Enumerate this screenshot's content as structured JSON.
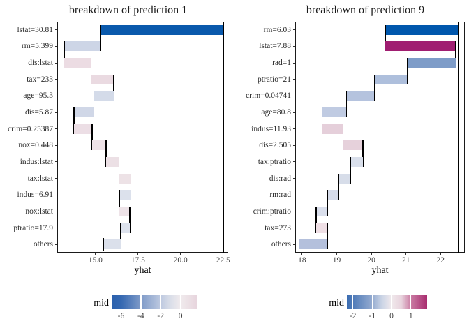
{
  "chart_data": [
    {
      "type": "bar",
      "subtype": "waterfall-breakdown",
      "title": "breakdown of prediction 1",
      "xlabel": "yhat",
      "xlim": [
        12.75,
        22.8
      ],
      "x_ticks": [
        15.0,
        17.5,
        20.0,
        22.5
      ],
      "x_tick_labels": [
        "15.0",
        "17.5",
        "20.0",
        "22.5"
      ],
      "intercept": 22.5,
      "final_prediction": 15.47,
      "grid": false,
      "rows": [
        {
          "label": "lstat=30.81",
          "contribution": -7.2,
          "from": 22.5,
          "to": 15.3,
          "color": "#0a59ac"
        },
        {
          "label": "rm=5.399",
          "contribution": -2.12,
          "from": 15.3,
          "to": 13.18,
          "color": "#cdd5e6"
        },
        {
          "label": "dis:lstat",
          "contribution": 1.55,
          "from": 13.18,
          "to": 14.73,
          "color": "#ecdce3"
        },
        {
          "label": "tax=233",
          "contribution": 1.34,
          "from": 14.73,
          "to": 16.07,
          "color": "#eadae1"
        },
        {
          "label": "age=95.3",
          "contribution": -1.18,
          "from": 16.07,
          "to": 14.89,
          "color": "#d4dbe9"
        },
        {
          "label": "dis=5.87",
          "contribution": -1.16,
          "from": 14.89,
          "to": 13.73,
          "color": "#d0d7e7"
        },
        {
          "label": "crim=0.25387",
          "contribution": 1.07,
          "from": 13.73,
          "to": 14.8,
          "color": "#ecdee5"
        },
        {
          "label": "nox=0.448",
          "contribution": 0.81,
          "from": 14.8,
          "to": 15.61,
          "color": "#eee2e7"
        },
        {
          "label": "indus:lstat",
          "contribution": 0.75,
          "from": 15.61,
          "to": 16.36,
          "color": "#ece0e5"
        },
        {
          "label": "tax:lstat",
          "contribution": 0.71,
          "from": 16.36,
          "to": 17.07,
          "color": "#ede2e6"
        },
        {
          "label": "indus=6.91",
          "contribution": -0.68,
          "from": 17.07,
          "to": 16.39,
          "color": "#dce1ec"
        },
        {
          "label": "nox:lstat",
          "contribution": 0.62,
          "from": 16.39,
          "to": 17.01,
          "color": "#eee3e8"
        },
        {
          "label": "ptratio=17.9",
          "contribution": -0.53,
          "from": 17.01,
          "to": 16.48,
          "color": "#dde2ed"
        },
        {
          "label": "others",
          "contribution": -1.01,
          "from": 16.48,
          "to": 15.47,
          "color": "#dbe0eb"
        }
      ],
      "legend": {
        "label": "mid",
        "range": [
          -6.95,
          1.65
        ],
        "ticks": [
          -6,
          -4,
          -2,
          0
        ],
        "tick_labels": [
          "-6",
          "-4",
          "-2",
          "0"
        ],
        "gradient": [
          [
            0,
            "#2b61ad"
          ],
          [
            0.11,
            "#3568b1"
          ],
          [
            0.343,
            "#7e9ac8"
          ],
          [
            0.575,
            "#bdc9e0"
          ],
          [
            0.7,
            "#dcdfe9"
          ],
          [
            0.808,
            "#f0ebed"
          ],
          [
            1,
            "#e7d5dd"
          ]
        ]
      }
    },
    {
      "type": "bar",
      "subtype": "waterfall-breakdown",
      "title": "breakdown of prediction 9",
      "xlabel": "yhat",
      "xlim": [
        17.8,
        22.7
      ],
      "x_ticks": [
        18,
        19,
        20,
        21,
        22
      ],
      "x_tick_labels": [
        "18",
        "19",
        "20",
        "21",
        "22"
      ],
      "intercept": 22.5,
      "final_prediction": 17.91,
      "grid": false,
      "rows": [
        {
          "label": "rm=6.03",
          "contribution": -2.1,
          "from": 22.5,
          "to": 20.4,
          "color": "#0057ad"
        },
        {
          "label": "lstat=7.88",
          "contribution": 2.03,
          "from": 20.4,
          "to": 22.43,
          "color": "#a01e71"
        },
        {
          "label": "rad=1",
          "contribution": -1.4,
          "from": 22.43,
          "to": 21.03,
          "color": "#7e9cc8"
        },
        {
          "label": "ptratio=21",
          "contribution": -0.95,
          "from": 21.03,
          "to": 20.08,
          "color": "#aebfdc"
        },
        {
          "label": "crim=0.04741",
          "contribution": -0.8,
          "from": 20.08,
          "to": 19.28,
          "color": "#b5c3de"
        },
        {
          "label": "age=80.8",
          "contribution": -0.71,
          "from": 19.28,
          "to": 18.57,
          "color": "#c0cbe2"
        },
        {
          "label": "indus=11.93",
          "contribution": 0.61,
          "from": 18.57,
          "to": 19.18,
          "color": "#e5cfda"
        },
        {
          "label": "dis=2.505",
          "contribution": 0.57,
          "from": 19.18,
          "to": 19.75,
          "color": "#e6d1db"
        },
        {
          "label": "tax:ptratio",
          "contribution": -0.36,
          "from": 19.75,
          "to": 19.39,
          "color": "#d9dfeb"
        },
        {
          "label": "dis:rad",
          "contribution": -0.33,
          "from": 19.39,
          "to": 19.06,
          "color": "#d7dde9"
        },
        {
          "label": "rm:rad",
          "contribution": -0.33,
          "from": 19.06,
          "to": 18.73,
          "color": "#d6dcea"
        },
        {
          "label": "crim:ptratio",
          "contribution": -0.33,
          "from": 18.73,
          "to": 18.4,
          "color": "#dadfec"
        },
        {
          "label": "tax=273",
          "contribution": 0.33,
          "from": 18.4,
          "to": 18.73,
          "color": "#efdfe5"
        },
        {
          "label": "others",
          "contribution": -0.82,
          "from": 18.73,
          "to": 17.91,
          "color": "#b4c0dc"
        }
      ],
      "legend": {
        "label": "mid",
        "range": [
          -2.31,
          1.84
        ],
        "ticks": [
          -2,
          -1,
          0,
          1
        ],
        "tick_labels": [
          "-2",
          "-1",
          "0",
          "1"
        ],
        "gradient": [
          [
            0,
            "#3a6cb1"
          ],
          [
            0.318,
            "#95abd0"
          ],
          [
            0.44,
            "#ccd5e6"
          ],
          [
            0.557,
            "#f0e9ec"
          ],
          [
            0.68,
            "#e8d3dd"
          ],
          [
            0.797,
            "#ca7ca3"
          ],
          [
            1,
            "#a82c6f"
          ]
        ]
      }
    }
  ]
}
